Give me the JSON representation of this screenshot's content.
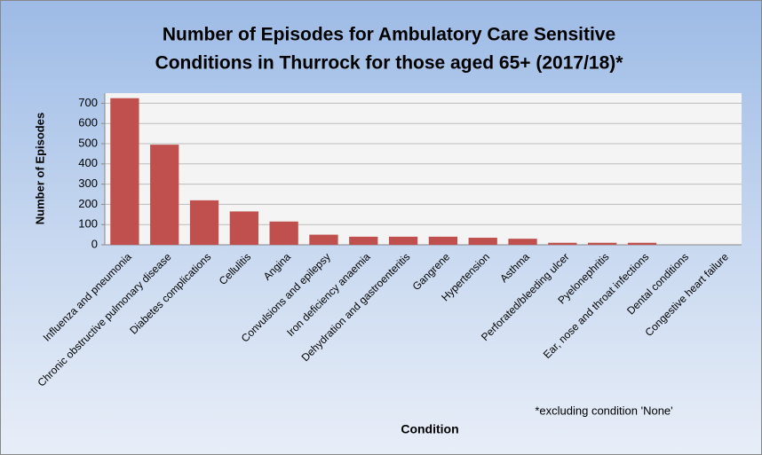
{
  "chart_data": {
    "type": "bar",
    "title": [
      "Number of Episodes for Ambulatory Care Sensitive",
      "Conditions in Thurrock for those aged 65+ (2017/18)*"
    ],
    "x_label": "Condition",
    "y_label": "Number of Episodes",
    "annotation": "*excluding  condition 'None'",
    "categories": [
      "Influenza and pneumonia",
      "Chronic obstructive pulmonary disease",
      "Diabetes complications",
      "Cellulitis",
      "Angina",
      "Convulsions and epilepsy",
      "Iron deficiency anaemia",
      "Dehydration and gastroenteritis",
      "Gangrene",
      "Hypertension",
      "Asthma",
      "Perforated/bleeding ulcer",
      "Pyelonephritis",
      "Ear, nose and throat infections",
      "Dental conditions",
      "Congestive heart failure"
    ],
    "values": [
      725,
      495,
      220,
      165,
      115,
      50,
      40,
      40,
      40,
      35,
      30,
      10,
      10,
      10,
      0,
      0
    ],
    "color": "#c0504d",
    "ylim": [
      0,
      750
    ],
    "yticks": [
      0,
      100,
      200,
      300,
      400,
      500,
      600,
      700
    ],
    "grid": true
  }
}
